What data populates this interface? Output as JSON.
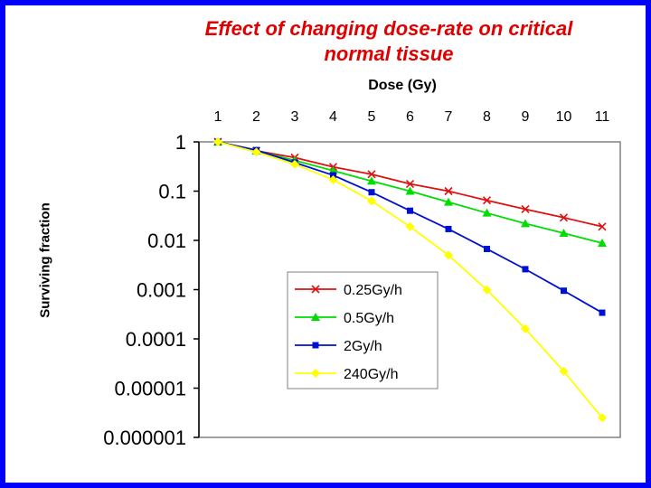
{
  "chart_data": {
    "type": "line",
    "title_line1": "Effect of changing dose-rate on critical",
    "title_line2": "normal tissue",
    "xlabel": "Dose (Gy)",
    "ylabel": "Surviving fraction",
    "x": [
      1,
      2,
      3,
      4,
      5,
      6,
      7,
      8,
      9,
      10,
      11
    ],
    "x_tick_labels": [
      "1",
      "2",
      "3",
      "4",
      "5",
      "6",
      "7",
      "8",
      "9",
      "10",
      "11"
    ],
    "y_scale": "log",
    "ylim": [
      1e-06,
      1
    ],
    "y_tick_values": [
      1,
      0.1,
      0.01,
      0.001,
      0.0001,
      1e-05,
      1e-06
    ],
    "y_tick_labels": [
      "1",
      "0.1",
      "0.01",
      "0.001",
      "0.0001",
      "0.00001",
      "0.000001"
    ],
    "grid": false,
    "legend_position": "lower-left inside plot",
    "series": [
      {
        "name": "0.25Gy/h",
        "color": "#e01010",
        "marker": "x",
        "values": [
          1,
          0.66,
          0.48,
          0.31,
          0.22,
          0.14,
          0.1,
          0.065,
          0.043,
          0.029,
          0.019
        ]
      },
      {
        "name": "0.5Gy/h",
        "color": "#00dd00",
        "marker": "triangle",
        "values": [
          1,
          0.66,
          0.42,
          0.26,
          0.16,
          0.1,
          0.06,
          0.036,
          0.022,
          0.014,
          0.0088
        ]
      },
      {
        "name": "2Gy/h",
        "color": "#0010d0",
        "marker": "square",
        "values": [
          1,
          0.68,
          0.38,
          0.21,
          0.095,
          0.04,
          0.017,
          0.0067,
          0.0026,
          0.00095,
          0.00034
        ]
      },
      {
        "name": "240Gy/h",
        "color": "#ffff00",
        "marker": "diamond",
        "values": [
          1,
          0.62,
          0.35,
          0.17,
          0.063,
          0.019,
          0.005,
          0.00099,
          0.00016,
          2.2e-05,
          2.5e-06
        ]
      }
    ]
  }
}
